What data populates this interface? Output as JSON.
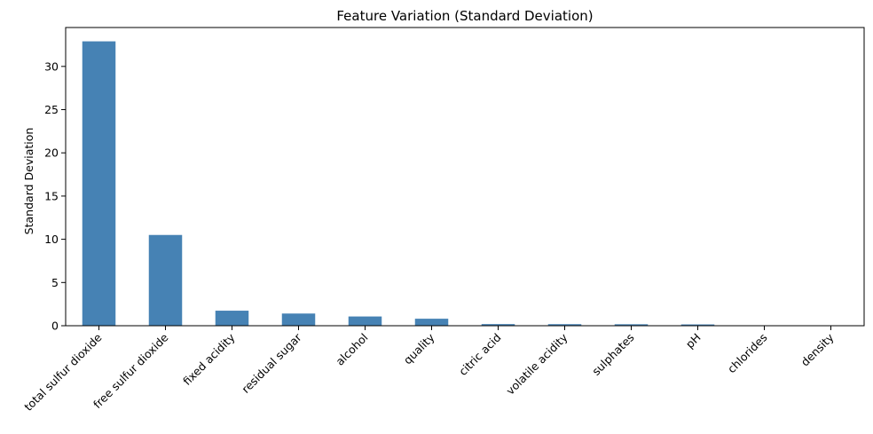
{
  "chart_data": {
    "type": "bar",
    "title": "Feature Variation (Standard Deviation)",
    "xlabel": "",
    "ylabel": "Standard Deviation",
    "categories": [
      "total sulfur dioxide",
      "free sulfur dioxide",
      "fixed acidity",
      "residual sugar",
      "alcohol",
      "quality",
      "citric acid",
      "volatile acidity",
      "sulphates",
      "pH",
      "chlorides",
      "density"
    ],
    "values": [
      32.9,
      10.5,
      1.74,
      1.41,
      1.07,
      0.81,
      0.19,
      0.18,
      0.17,
      0.15,
      0.05,
      0.002
    ],
    "ylim": [
      0,
      34.5
    ],
    "yticks": [
      0,
      5,
      10,
      15,
      20,
      25,
      30
    ],
    "grid": false,
    "bar_color": "#4682b4"
  }
}
